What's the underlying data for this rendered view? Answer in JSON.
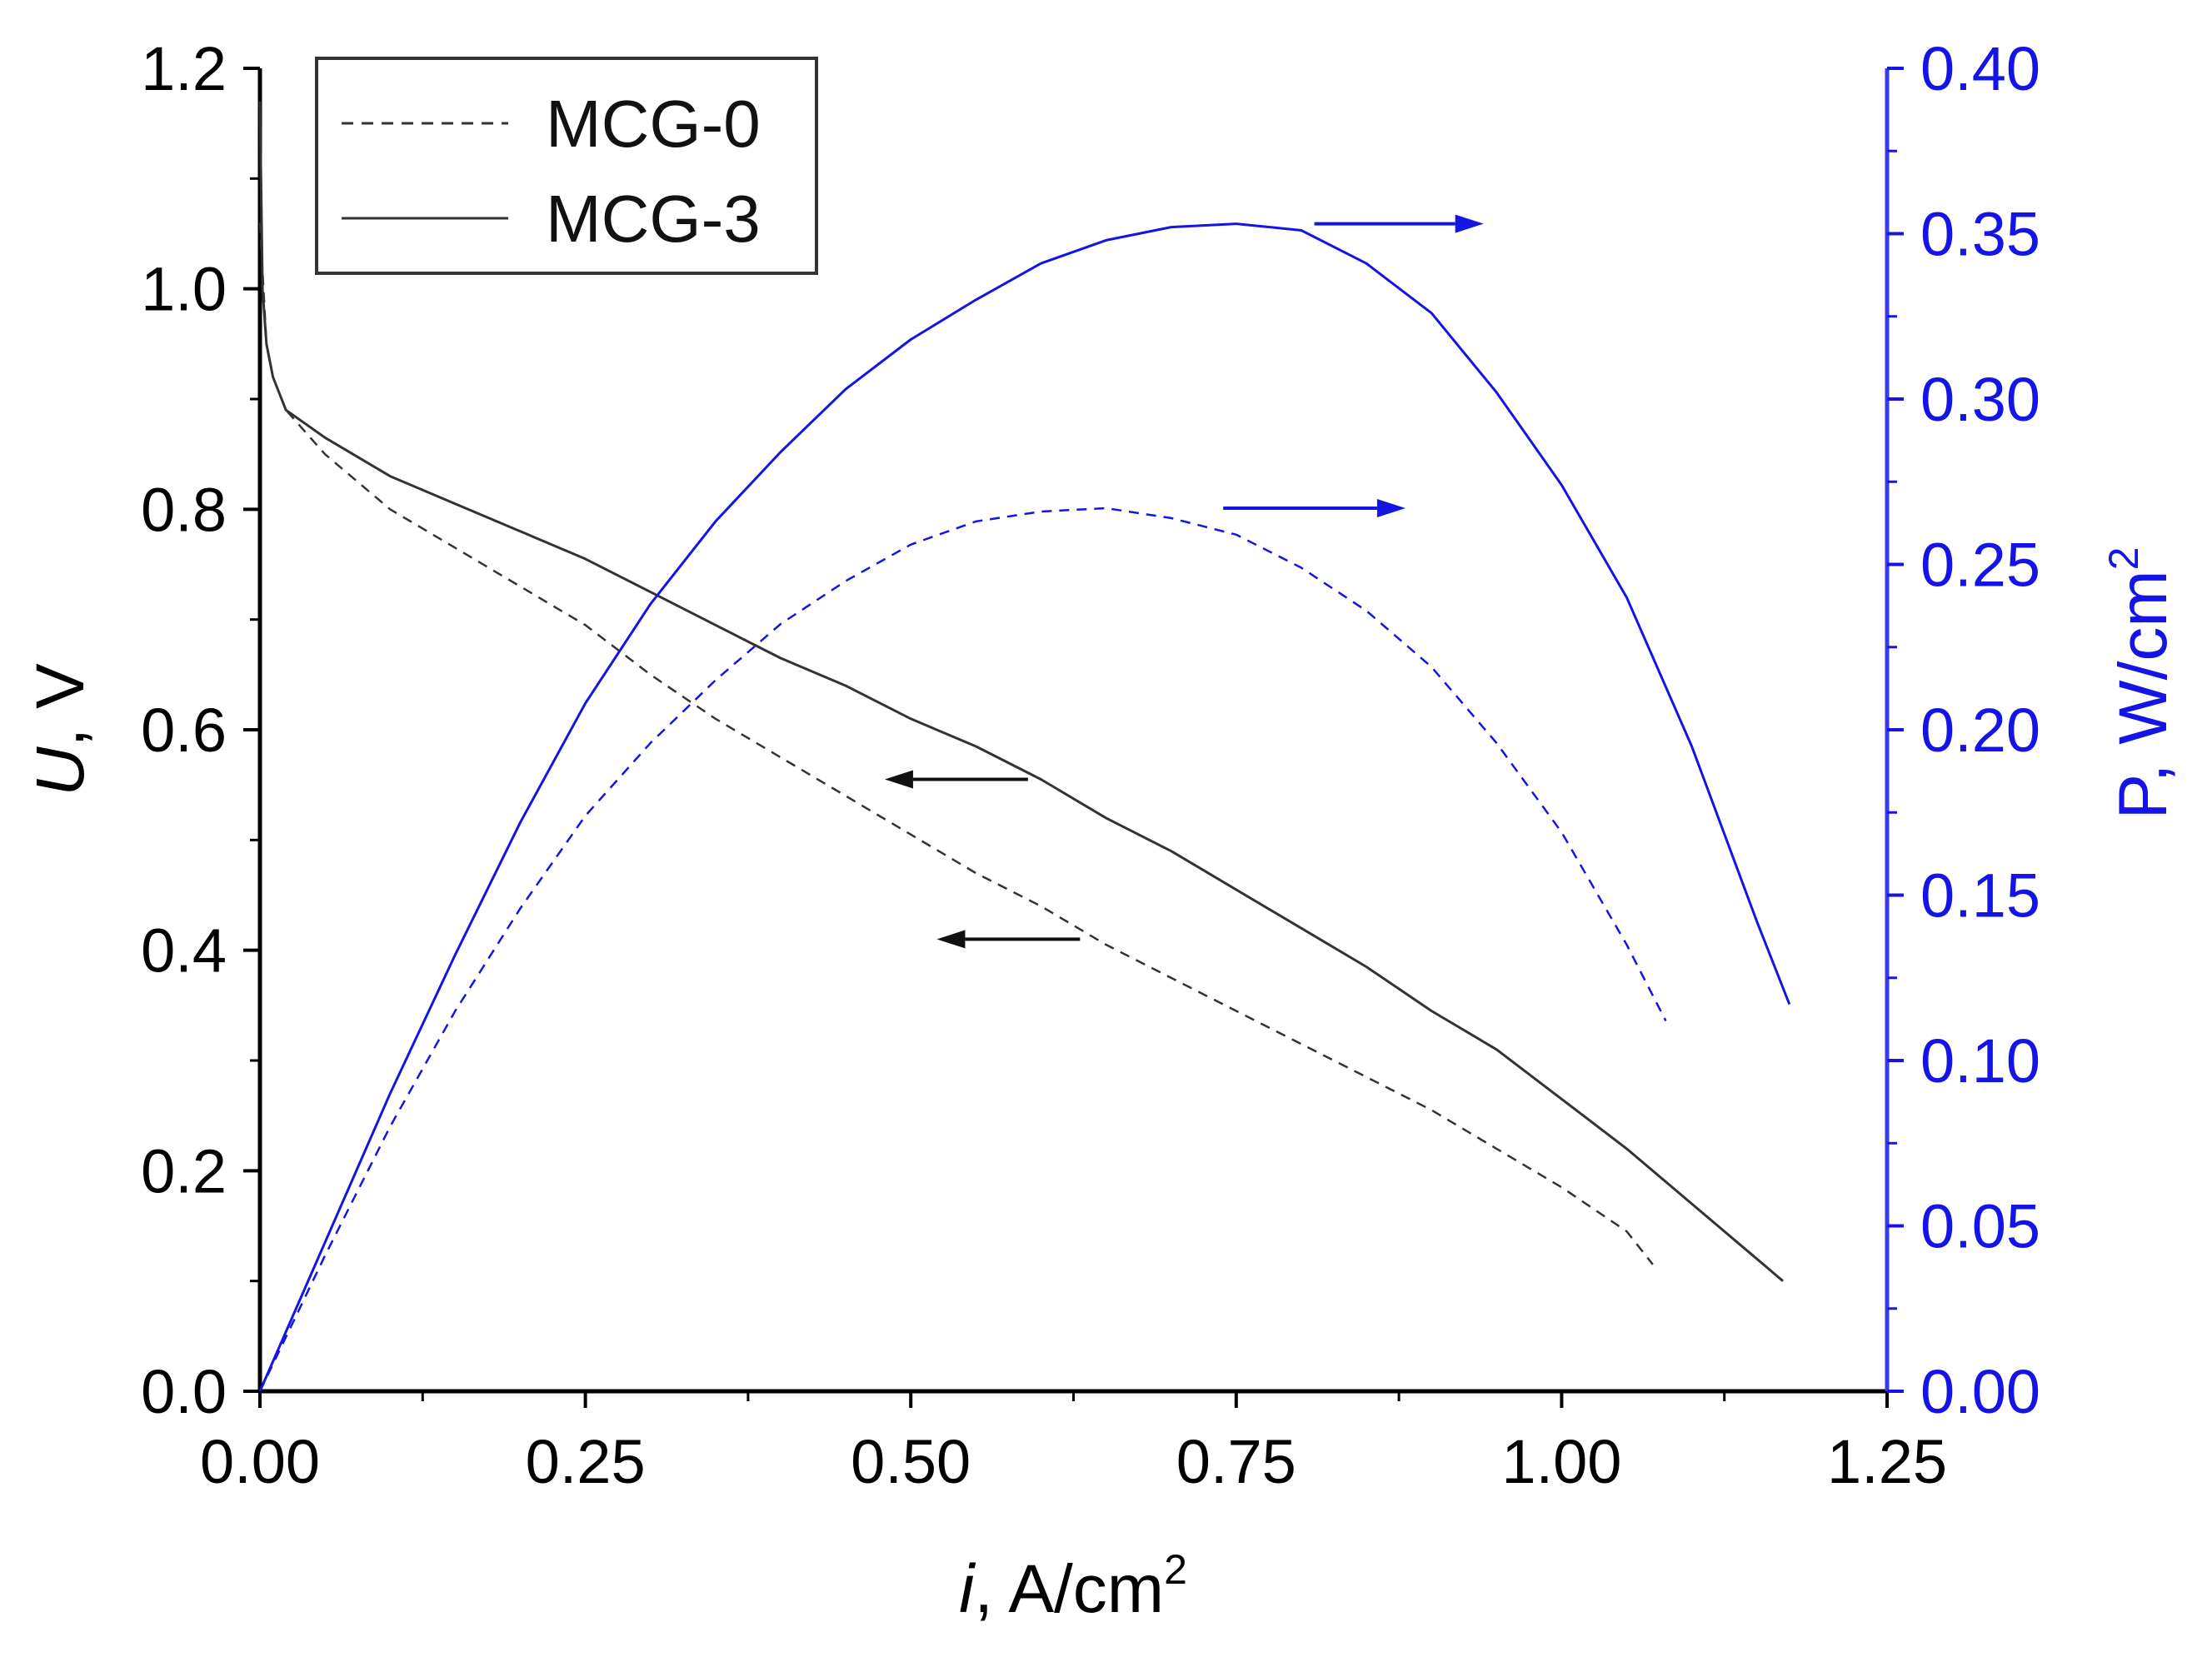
{
  "chart_data": {
    "type": "line",
    "x_axis": {
      "label_var": "i",
      "label_rest": ", A/cm",
      "label_sup": "2",
      "range": [
        0,
        1.25
      ],
      "ticks": [
        "0.00",
        "0.25",
        "0.50",
        "0.75",
        "1.00",
        "1.25"
      ],
      "tick_values": [
        0,
        0.25,
        0.5,
        0.75,
        1.0,
        1.25
      ]
    },
    "y_left": {
      "label_var": "U",
      "label_rest": ", V",
      "range": [
        0,
        1.2
      ],
      "ticks": [
        "0.0",
        "0.2",
        "0.4",
        "0.6",
        "0.8",
        "1.0",
        "1.2"
      ],
      "tick_values": [
        0,
        0.2,
        0.4,
        0.6,
        0.8,
        1.0,
        1.2
      ],
      "color": "#000000"
    },
    "y_right": {
      "label_main": "P, W/cm",
      "label_sup": "2",
      "range": [
        0,
        0.4
      ],
      "ticks": [
        "0.00",
        "0.05",
        "0.10",
        "0.15",
        "0.20",
        "0.25",
        "0.30",
        "0.35",
        "0.40"
      ],
      "tick_values": [
        0,
        0.05,
        0.1,
        0.15,
        0.2,
        0.25,
        0.3,
        0.35,
        0.4
      ],
      "color": "#1414e6"
    },
    "legend": {
      "position": "top-left",
      "entries": [
        {
          "label": "MCG-0",
          "style": "dashed"
        },
        {
          "label": "MCG-3",
          "style": "solid"
        }
      ]
    },
    "series": [
      {
        "name": "MCG-0",
        "quantity": "U",
        "axis": "left",
        "style": "dashed",
        "color": "#333333",
        "points": [
          [
            0.0,
            1.06
          ],
          [
            0.005,
            0.95
          ],
          [
            0.01,
            0.92
          ],
          [
            0.02,
            0.89
          ],
          [
            0.05,
            0.85
          ],
          [
            0.1,
            0.8
          ],
          [
            0.15,
            0.765
          ],
          [
            0.2,
            0.73
          ],
          [
            0.25,
            0.695
          ],
          [
            0.3,
            0.65
          ],
          [
            0.35,
            0.61
          ],
          [
            0.4,
            0.575
          ],
          [
            0.45,
            0.54
          ],
          [
            0.5,
            0.505
          ],
          [
            0.55,
            0.47
          ],
          [
            0.6,
            0.44
          ],
          [
            0.65,
            0.405
          ],
          [
            0.7,
            0.375
          ],
          [
            0.75,
            0.345
          ],
          [
            0.8,
            0.315
          ],
          [
            0.85,
            0.285
          ],
          [
            0.9,
            0.255
          ],
          [
            0.95,
            0.22
          ],
          [
            1.0,
            0.185
          ],
          [
            1.05,
            0.145
          ],
          [
            1.07,
            0.115
          ]
        ]
      },
      {
        "name": "MCG-3",
        "quantity": "U",
        "axis": "left",
        "style": "solid",
        "color": "#333333",
        "points": [
          [
            0.0,
            1.17
          ],
          [
            0.002,
            1.0
          ],
          [
            0.005,
            0.95
          ],
          [
            0.01,
            0.92
          ],
          [
            0.02,
            0.89
          ],
          [
            0.05,
            0.865
          ],
          [
            0.1,
            0.83
          ],
          [
            0.15,
            0.805
          ],
          [
            0.2,
            0.78
          ],
          [
            0.25,
            0.755
          ],
          [
            0.3,
            0.725
          ],
          [
            0.35,
            0.695
          ],
          [
            0.4,
            0.665
          ],
          [
            0.45,
            0.64
          ],
          [
            0.5,
            0.61
          ],
          [
            0.55,
            0.585
          ],
          [
            0.6,
            0.555
          ],
          [
            0.65,
            0.52
          ],
          [
            0.7,
            0.49
          ],
          [
            0.75,
            0.455
          ],
          [
            0.8,
            0.42
          ],
          [
            0.85,
            0.385
          ],
          [
            0.9,
            0.345
          ],
          [
            0.95,
            0.31
          ],
          [
            1.0,
            0.265
          ],
          [
            1.05,
            0.22
          ],
          [
            1.1,
            0.17
          ],
          [
            1.15,
            0.12
          ],
          [
            1.17,
            0.1
          ]
        ]
      },
      {
        "name": "MCG-0",
        "quantity": "P",
        "axis": "right",
        "style": "dashed",
        "color": "#1414e6",
        "points": [
          [
            0.0,
            0.0
          ],
          [
            0.05,
            0.041
          ],
          [
            0.1,
            0.08
          ],
          [
            0.15,
            0.115
          ],
          [
            0.2,
            0.146
          ],
          [
            0.25,
            0.174
          ],
          [
            0.3,
            0.196
          ],
          [
            0.35,
            0.215
          ],
          [
            0.4,
            0.232
          ],
          [
            0.45,
            0.245
          ],
          [
            0.5,
            0.256
          ],
          [
            0.55,
            0.263
          ],
          [
            0.6,
            0.266
          ],
          [
            0.65,
            0.267
          ],
          [
            0.7,
            0.264
          ],
          [
            0.75,
            0.259
          ],
          [
            0.8,
            0.249
          ],
          [
            0.85,
            0.236
          ],
          [
            0.9,
            0.219
          ],
          [
            0.95,
            0.196
          ],
          [
            1.0,
            0.169
          ],
          [
            1.05,
            0.135
          ],
          [
            1.08,
            0.112
          ]
        ]
      },
      {
        "name": "MCG-3",
        "quantity": "P",
        "axis": "right",
        "style": "solid",
        "color": "#1414e6",
        "points": [
          [
            0.0,
            0.0
          ],
          [
            0.05,
            0.045
          ],
          [
            0.1,
            0.09
          ],
          [
            0.15,
            0.132
          ],
          [
            0.2,
            0.172
          ],
          [
            0.25,
            0.208
          ],
          [
            0.3,
            0.238
          ],
          [
            0.35,
            0.263
          ],
          [
            0.4,
            0.284
          ],
          [
            0.45,
            0.303
          ],
          [
            0.5,
            0.318
          ],
          [
            0.55,
            0.33
          ],
          [
            0.6,
            0.341
          ],
          [
            0.65,
            0.348
          ],
          [
            0.7,
            0.352
          ],
          [
            0.75,
            0.353
          ],
          [
            0.8,
            0.351
          ],
          [
            0.85,
            0.341
          ],
          [
            0.9,
            0.326
          ],
          [
            0.95,
            0.302
          ],
          [
            1.0,
            0.274
          ],
          [
            1.05,
            0.24
          ],
          [
            1.1,
            0.195
          ],
          [
            1.15,
            0.142
          ],
          [
            1.175,
            0.117
          ]
        ]
      }
    ],
    "annotations": [
      {
        "type": "arrow",
        "direction": "right",
        "from": [
          0.81,
          0.353
        ],
        "to": [
          0.94,
          0.353
        ],
        "axis": "right",
        "color": "#1414e6",
        "points_to": "MCG-3 P axis"
      },
      {
        "type": "arrow",
        "direction": "right",
        "from": [
          0.74,
          0.267
        ],
        "to": [
          0.88,
          0.267
        ],
        "axis": "right",
        "color": "#1414e6",
        "points_to": "MCG-0 P axis"
      },
      {
        "type": "arrow",
        "direction": "left",
        "from": [
          0.59,
          0.555
        ],
        "to": [
          0.48,
          0.555
        ],
        "axis": "left",
        "color": "#111111",
        "points_to": "U axis"
      },
      {
        "type": "arrow",
        "direction": "left",
        "from": [
          0.63,
          0.41
        ],
        "to": [
          0.52,
          0.41
        ],
        "axis": "left",
        "color": "#111111",
        "points_to": "U axis"
      }
    ]
  }
}
